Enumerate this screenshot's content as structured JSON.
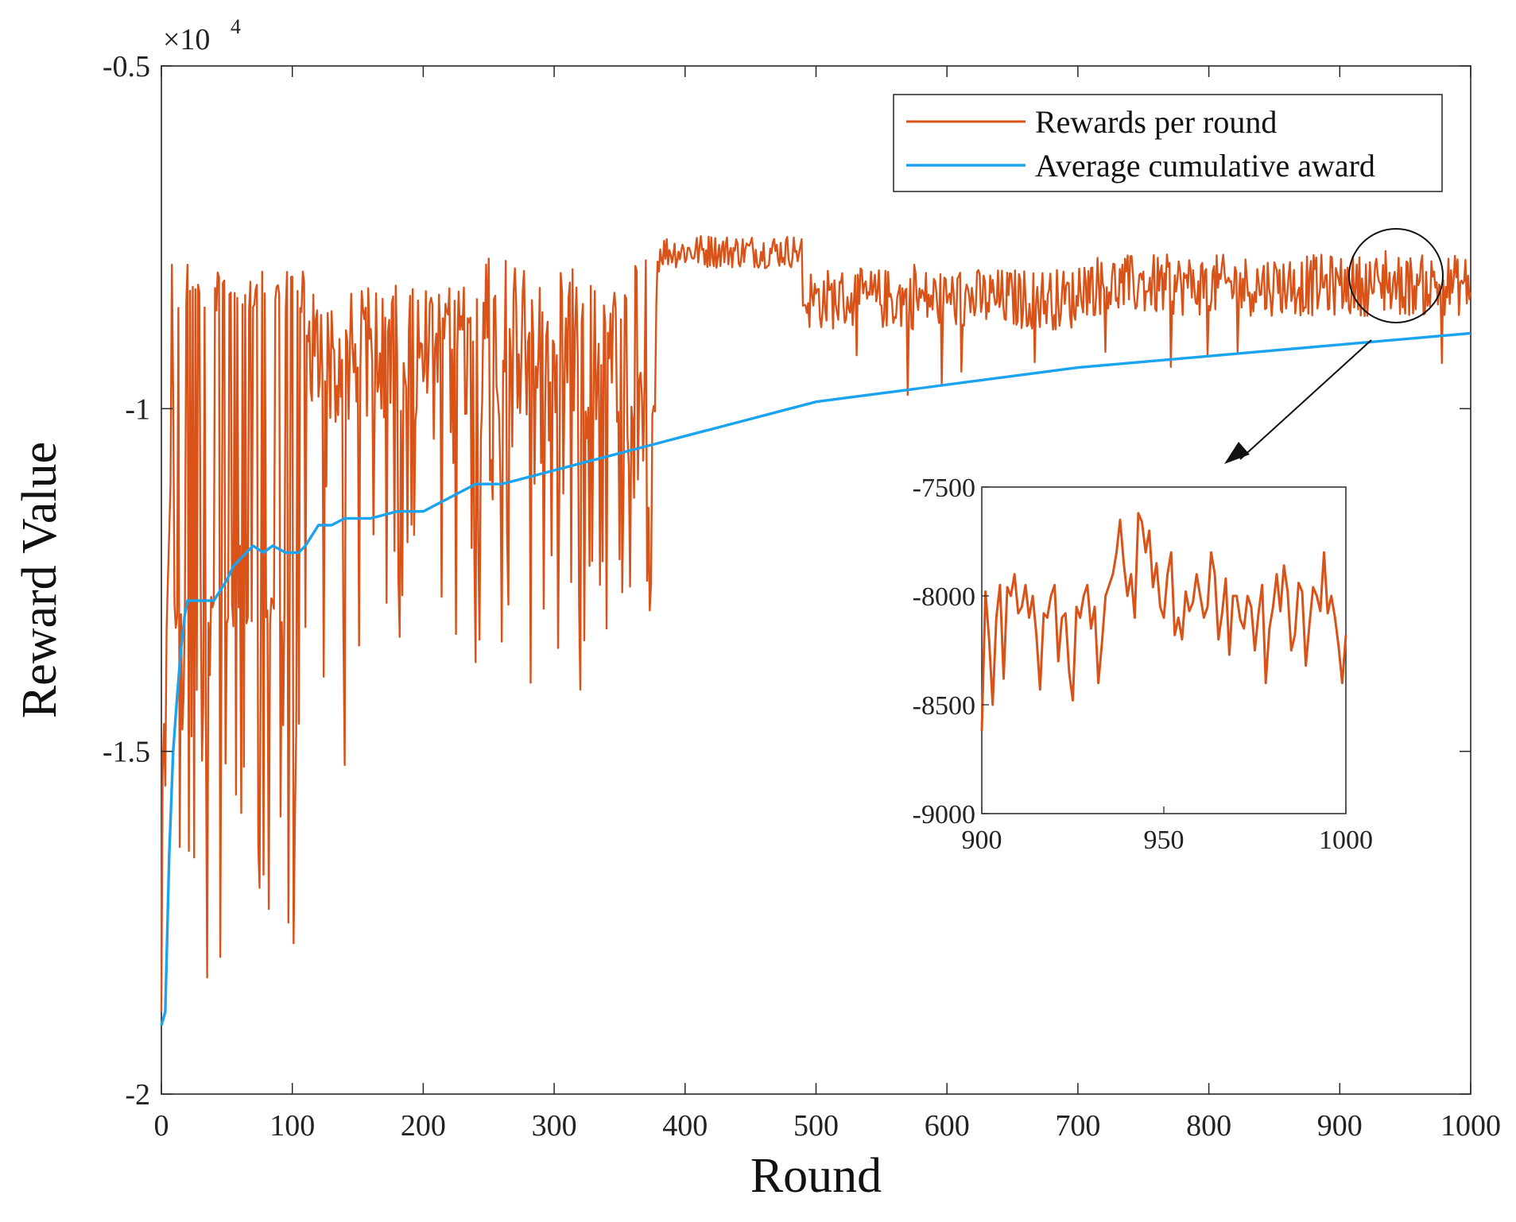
{
  "chart_data": [
    {
      "id": "main",
      "type": "line",
      "xlabel": "Round",
      "ylabel": "Reward Value",
      "exponent_label": "×10",
      "exponent_power": "4",
      "xlim": [
        0,
        1000
      ],
      "ylim": [
        -2,
        -0.5
      ],
      "xticks": [
        0,
        100,
        200,
        300,
        400,
        500,
        600,
        700,
        800,
        900,
        1000
      ],
      "xtick_labels": [
        "0",
        "100",
        "200",
        "300",
        "400",
        "500",
        "600",
        "700",
        "800",
        "900",
        "1000"
      ],
      "yticks": [
        -2,
        -1.5,
        -1,
        -0.5
      ],
      "ytick_labels": [
        "-2",
        "-1.5",
        "-1",
        "-0.5"
      ],
      "grid": false,
      "legend_position": "top-right",
      "series": [
        {
          "name": "Rewards per round",
          "color": "#D95319",
          "segments": [
            {
              "x": [
                0,
                10
              ],
              "base": -1.18,
              "amp": 0.32,
              "drift": -1.05,
              "note_x": [
                0,
                10
              ]
            },
            {
              "x": [
                10,
                110
              ],
              "base": -1.22,
              "amp": 0.28
            },
            {
              "x": [
                110,
                200
              ],
              "base": -0.85,
              "amp": 0.22
            },
            {
              "x": [
                200,
                240
              ],
              "base": -0.93,
              "amp": 0.14
            },
            {
              "x": [
                240,
                380
              ],
              "base": -0.9,
              "amp": 0.2
            },
            {
              "x": [
                380,
                490
              ],
              "base": -0.76,
              "amp": 0.03
            },
            {
              "x": [
                490,
                570
              ],
              "base": -0.84,
              "amp": 0.04
            },
            {
              "x": [
                570,
                700
              ],
              "base": -0.84,
              "amp": 0.05
            },
            {
              "x": [
                700,
                1000
              ],
              "base": -0.82,
              "amp": 0.04
            }
          ],
          "anchor_points": [
            [
              0,
              -1.88
            ],
            [
              3,
              -1.55
            ],
            [
              8,
              -0.79
            ],
            [
              15,
              -1.3
            ],
            [
              20,
              -0.79
            ],
            [
              30,
              -1.25
            ],
            [
              35,
              -1.83
            ],
            [
              45,
              -1.8
            ],
            [
              60,
              -1.2
            ],
            [
              78,
              -1.68
            ],
            [
              82,
              -1.73
            ],
            [
              97,
              -1.75
            ],
            [
              101,
              -1.78
            ],
            [
              108,
              -0.8
            ],
            [
              140,
              -1.52
            ],
            [
              200,
              -0.96
            ],
            [
              240,
              -1.37
            ],
            [
              260,
              -1.34
            ],
            [
              282,
              -1.4
            ],
            [
              320,
              -1.41
            ],
            [
              350,
              -1.22
            ],
            [
              380,
              -0.8
            ],
            [
              420,
              -0.75
            ],
            [
              485,
              -0.77
            ],
            [
              490,
              -0.85
            ],
            [
              570,
              -0.98
            ],
            [
              575,
              -0.79
            ],
            [
              700,
              -0.85
            ],
            [
              750,
              -0.8
            ],
            [
              800,
              -0.85
            ],
            [
              900,
              -0.82
            ],
            [
              935,
              -0.77
            ],
            [
              960,
              -0.82
            ],
            [
              1000,
              -0.83
            ]
          ]
        },
        {
          "name": "Average cumulative award",
          "color": "#1AA3EF",
          "x": [
            0,
            3,
            6,
            9,
            12,
            15,
            18,
            20,
            25,
            30,
            40,
            50,
            55,
            60,
            70,
            78,
            85,
            95,
            105,
            110,
            120,
            130,
            140,
            160,
            180,
            200,
            220,
            240,
            260,
            280,
            300,
            320,
            340,
            360,
            380,
            400,
            440,
            480,
            500,
            540,
            580,
            620,
            660,
            700,
            760,
            820,
            880,
            940,
            1000
          ],
          "y": [
            -1.9,
            -1.88,
            -1.65,
            -1.5,
            -1.42,
            -1.35,
            -1.3,
            -1.28,
            -1.28,
            -1.28,
            -1.28,
            -1.25,
            -1.23,
            -1.22,
            -1.2,
            -1.21,
            -1.2,
            -1.21,
            -1.21,
            -1.2,
            -1.17,
            -1.17,
            -1.16,
            -1.16,
            -1.15,
            -1.15,
            -1.13,
            -1.11,
            -1.11,
            -1.1,
            -1.09,
            -1.08,
            -1.07,
            -1.06,
            -1.05,
            -1.04,
            -1.02,
            -1.0,
            -0.99,
            -0.98,
            -0.97,
            -0.96,
            -0.95,
            -0.94,
            -0.93,
            -0.92,
            -0.91,
            -0.9,
            -0.89
          ]
        }
      ]
    },
    {
      "id": "inset",
      "type": "line",
      "xlim": [
        900,
        1000
      ],
      "ylim": [
        -9000,
        -7500
      ],
      "xticks": [
        900,
        950,
        1000
      ],
      "xtick_labels": [
        "900",
        "950",
        "1000"
      ],
      "yticks": [
        -9000,
        -8500,
        -8000,
        -7500
      ],
      "ytick_labels": [
        "-9000",
        "-8500",
        "-8000",
        "-7500"
      ],
      "grid": false,
      "series": [
        {
          "name": "Rewards per round",
          "color": "#D95319",
          "x": [
            900,
            901,
            902,
            903,
            904,
            905,
            906,
            907,
            908,
            909,
            910,
            911,
            912,
            913,
            914,
            915,
            916,
            917,
            918,
            919,
            920,
            921,
            922,
            923,
            924,
            925,
            926,
            927,
            928,
            929,
            930,
            931,
            932,
            933,
            934,
            935,
            936,
            937,
            938,
            939,
            940,
            941,
            942,
            943,
            944,
            945,
            946,
            947,
            948,
            949,
            950,
            951,
            952,
            953,
            954,
            955,
            956,
            957,
            958,
            959,
            960,
            961,
            962,
            963,
            964,
            965,
            966,
            967,
            968,
            969,
            970,
            971,
            972,
            973,
            974,
            975,
            976,
            977,
            978,
            979,
            980,
            981,
            982,
            983,
            984,
            985,
            986,
            987,
            988,
            989,
            990,
            991,
            992,
            993,
            994,
            995,
            996,
            997,
            998,
            999,
            1000
          ],
          "y": [
            -8620,
            -7980,
            -8200,
            -8500,
            -8100,
            -7950,
            -8380,
            -7960,
            -8000,
            -7900,
            -8080,
            -8050,
            -7950,
            -8100,
            -8000,
            -8180,
            -8430,
            -8080,
            -8100,
            -8000,
            -7950,
            -8300,
            -8100,
            -8080,
            -8350,
            -8480,
            -8050,
            -8100,
            -8000,
            -7950,
            -8150,
            -8050,
            -8400,
            -8220,
            -8000,
            -7950,
            -7900,
            -7800,
            -7650,
            -7850,
            -8000,
            -7900,
            -8100,
            -7620,
            -7660,
            -7800,
            -7700,
            -7960,
            -7850,
            -8050,
            -8100,
            -7900,
            -7800,
            -8180,
            -8100,
            -8200,
            -7980,
            -8070,
            -8030,
            -7900,
            -8000,
            -8100,
            -8050,
            -7800,
            -7900,
            -8200,
            -8080,
            -7920,
            -8270,
            -8000,
            -8000,
            -8110,
            -8150,
            -8000,
            -8050,
            -8250,
            -8080,
            -7950,
            -8400,
            -8150,
            -8050,
            -7900,
            -8070,
            -7860,
            -7980,
            -8250,
            -8180,
            -7940,
            -7980,
            -8320,
            -8130,
            -7960,
            -8000,
            -8070,
            -7800,
            -8080,
            -8000,
            -8100,
            -8230,
            -8400,
            -8180
          ]
        }
      ]
    }
  ]
}
